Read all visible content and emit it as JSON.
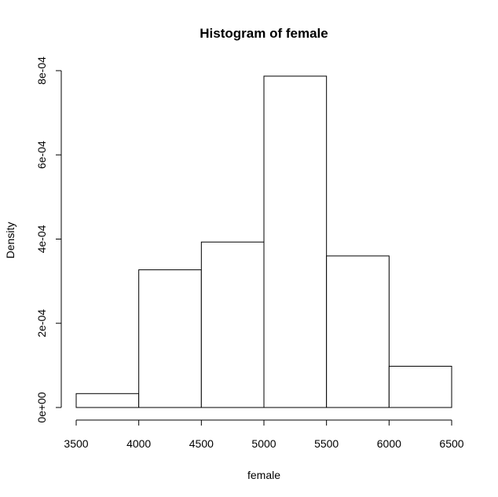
{
  "chart_data": {
    "type": "bar",
    "title": "Histogram of female",
    "xlabel": "female",
    "ylabel": "Density",
    "bins": [
      {
        "from": 3500,
        "to": 4000,
        "density": 3.3e-05
      },
      {
        "from": 4000,
        "to": 4500,
        "density": 0.000327
      },
      {
        "from": 4500,
        "to": 5000,
        "density": 0.000393
      },
      {
        "from": 5000,
        "to": 5500,
        "density": 0.000787
      },
      {
        "from": 5500,
        "to": 6000,
        "density": 0.00036
      },
      {
        "from": 6000,
        "to": 6500,
        "density": 9.8e-05
      }
    ],
    "x_ticks": [
      3500,
      4000,
      4500,
      5000,
      5500,
      6000,
      6500
    ],
    "x_tick_labels": [
      "3500",
      "4000",
      "4500",
      "5000",
      "5500",
      "6000",
      "6500"
    ],
    "y_ticks": [
      0,
      0.0002,
      0.0004,
      0.0006,
      0.0008
    ],
    "y_tick_labels": [
      "0e+00",
      "2e-04",
      "4e-04",
      "6e-04",
      "8e-04"
    ],
    "xlim": [
      3500,
      6500
    ],
    "ylim": [
      0,
      0.0008
    ],
    "grid": false,
    "colors": {
      "bar_fill": "#ffffff",
      "bar_stroke": "#000000",
      "axis": "#000000",
      "text": "#000000"
    }
  }
}
